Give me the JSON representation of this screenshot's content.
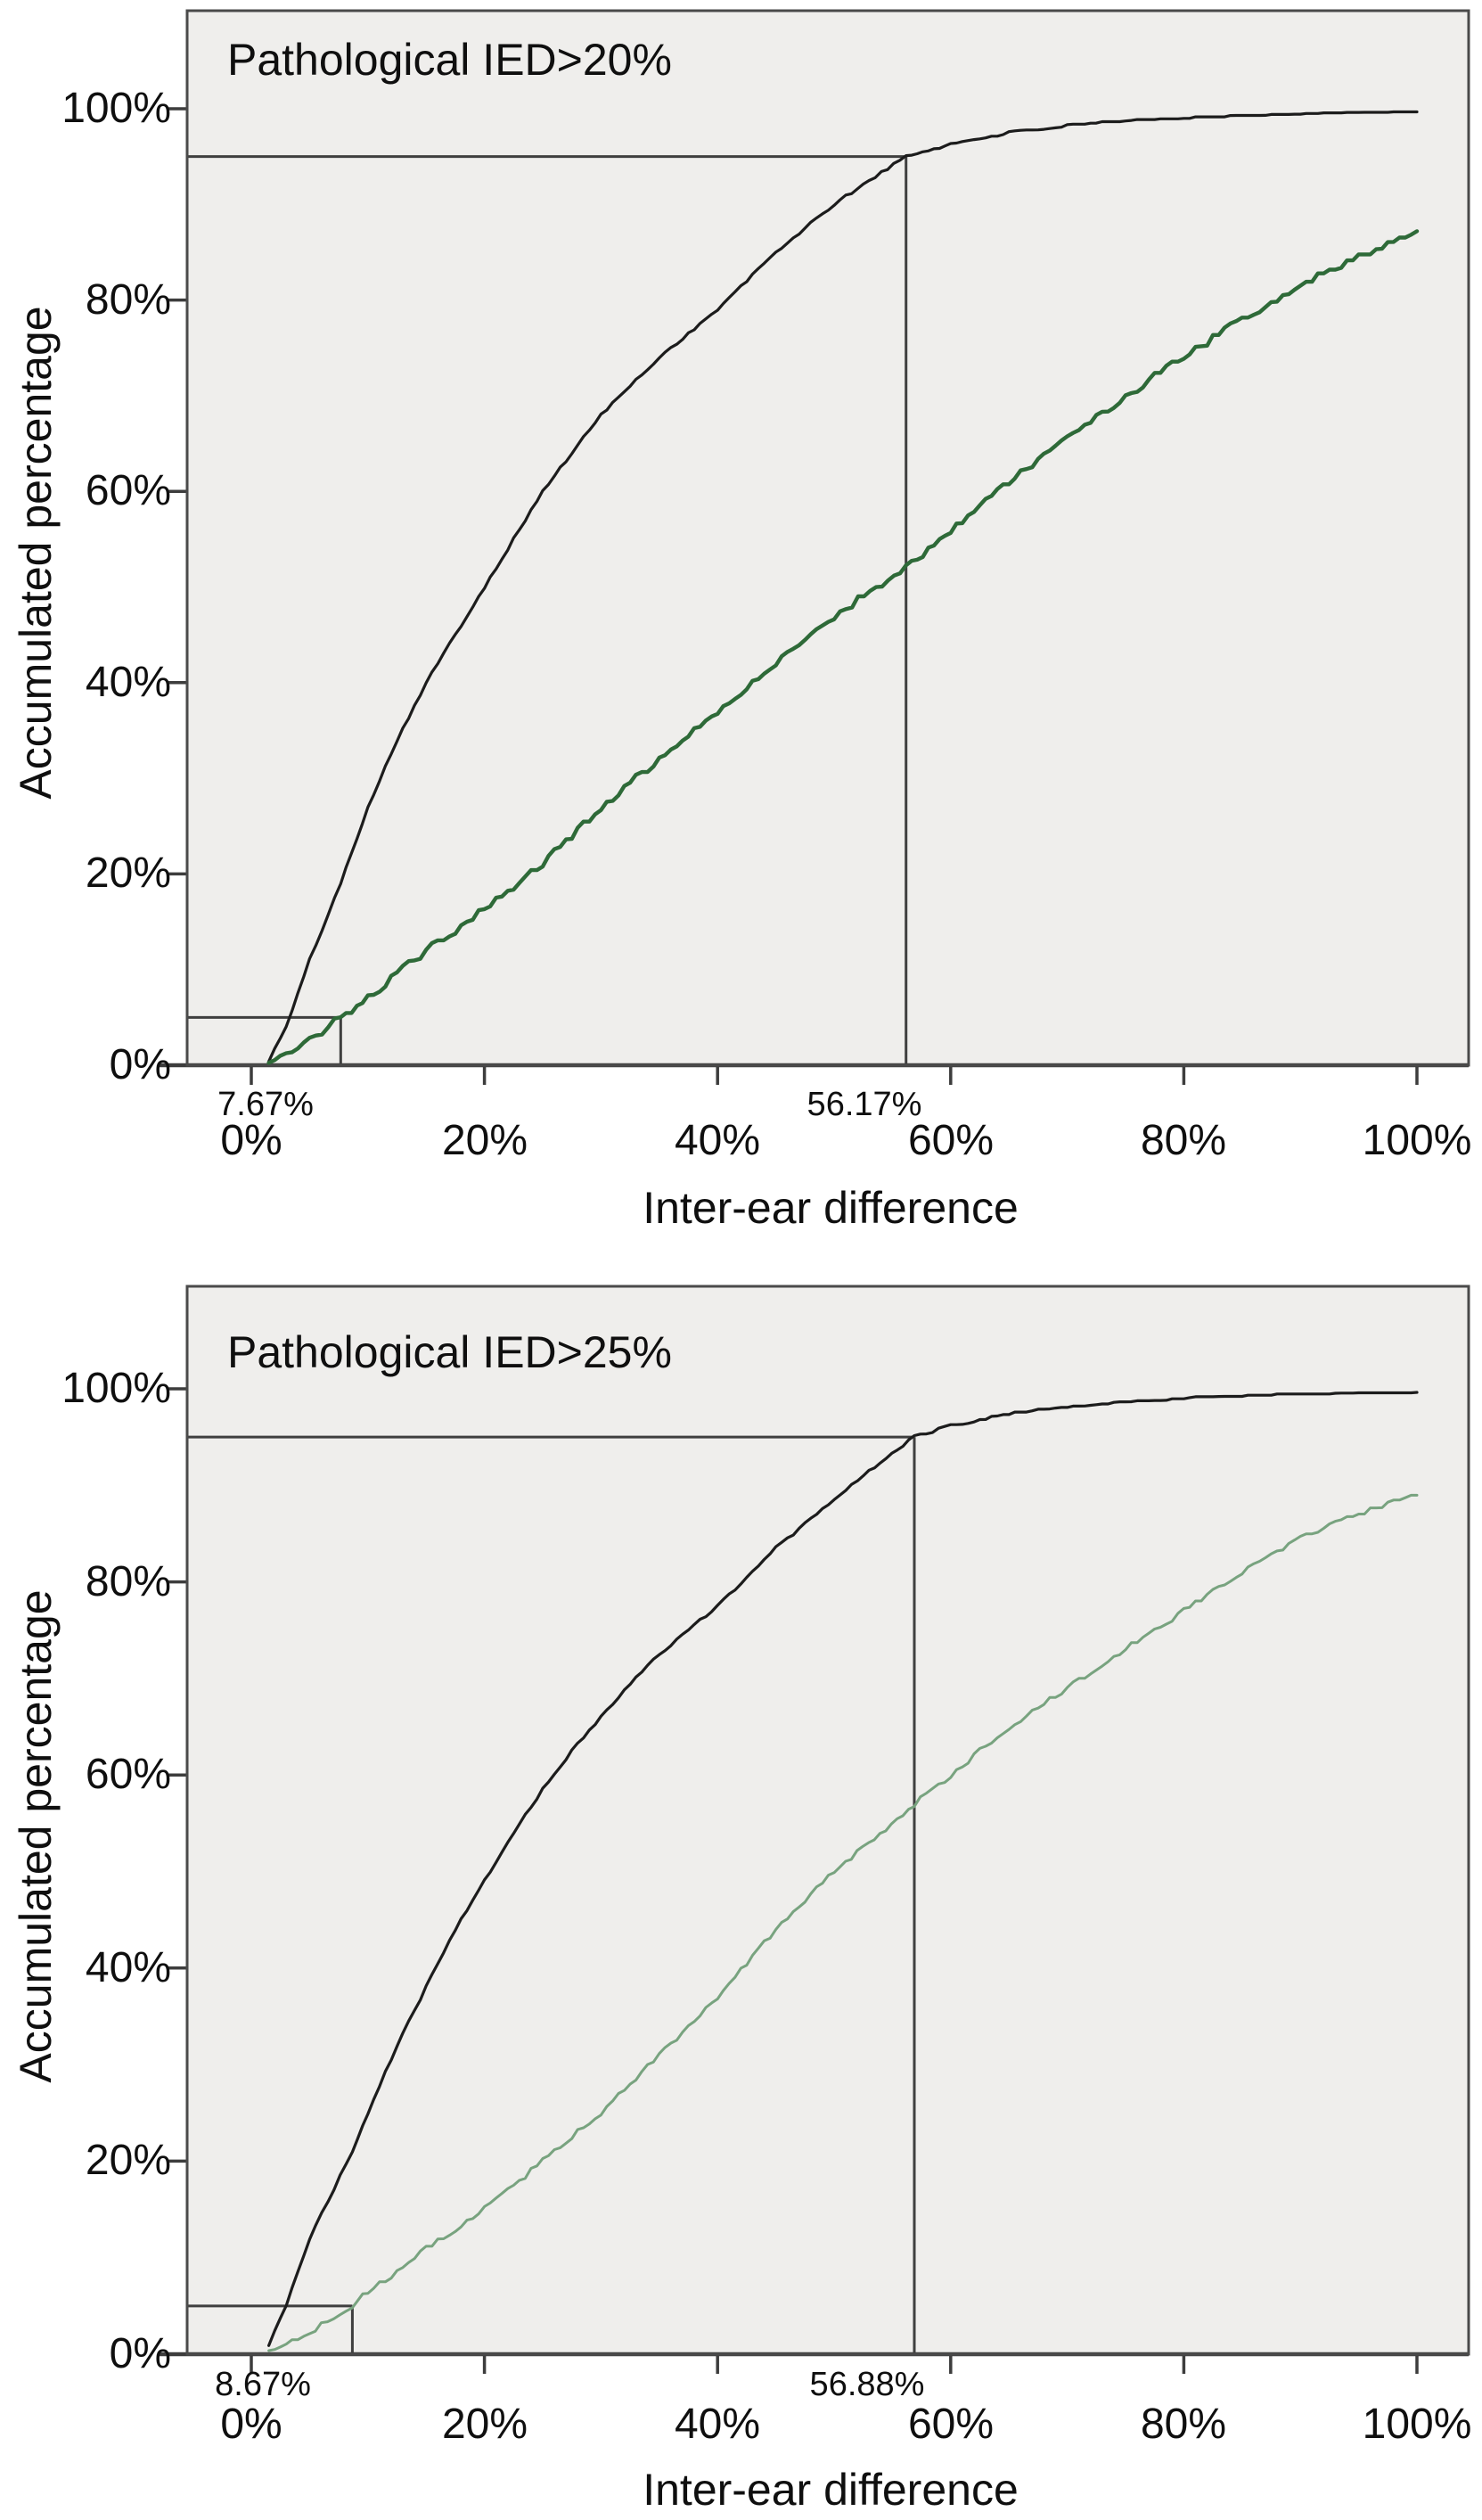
{
  "page": {
    "background": "#ffffff",
    "border_color": "#4a4a4a",
    "annotation_line_color": "#3f3f3f"
  },
  "chart_data": [
    {
      "type": "line",
      "title": "Pathological IED>20%",
      "xlabel": "Inter-ear difference",
      "ylabel": "Accumulated percentage",
      "xlim": [
        0,
        100
      ],
      "ylim": [
        0,
        100
      ],
      "grid": false,
      "legend": "none",
      "plot_bg": "#efeeec",
      "x_tick_values": [
        0,
        20,
        40,
        60,
        80,
        100
      ],
      "y_tick_values": [
        0,
        20,
        40,
        60,
        80,
        100
      ],
      "x_tick_labels": [
        "0%",
        "20%",
        "40%",
        "60%",
        "80%",
        "100%"
      ],
      "y_tick_labels": [
        "0%",
        "20%",
        "40%",
        "60%",
        "80%",
        "100%"
      ],
      "annotations": {
        "h_line_y": 95,
        "v_line_x": 56.17,
        "v_line_label": "56.17%",
        "box_line_y": 5,
        "box_line_x": 7.67,
        "box_label": "7.67%"
      },
      "series": [
        {
          "name": "black",
          "color": "#1c1c1c",
          "width": 3.2,
          "jitter": 0.15,
          "points": [
            [
              1.5,
              0.5
            ],
            [
              3,
              4
            ],
            [
              5,
              11
            ],
            [
              7.67,
              19
            ],
            [
              10,
              27
            ],
            [
              12.5,
              34
            ],
            [
              15,
              40
            ],
            [
              17.5,
              45
            ],
            [
              20,
              50
            ],
            [
              22.5,
              55
            ],
            [
              25,
              60
            ],
            [
              27.5,
              64
            ],
            [
              30,
              68
            ],
            [
              32.5,
              71
            ],
            [
              35,
              74
            ],
            [
              37.5,
              76.5
            ],
            [
              40,
              79
            ],
            [
              42.5,
              82
            ],
            [
              45,
              85
            ],
            [
              47.5,
              87.5
            ],
            [
              50,
              90
            ],
            [
              53,
              92.5
            ],
            [
              56.17,
              95
            ],
            [
              60,
              96.3
            ],
            [
              65,
              97.5
            ],
            [
              70,
              98.2
            ],
            [
              75,
              98.7
            ],
            [
              80,
              99
            ],
            [
              85,
              99.3
            ],
            [
              90,
              99.4
            ],
            [
              95,
              99.5
            ],
            [
              100,
              99.6
            ]
          ]
        },
        {
          "name": "green",
          "color": "#2e6a38",
          "width": 4.4,
          "jitter": 0.4,
          "points": [
            [
              1.5,
              0.3
            ],
            [
              3,
              1
            ],
            [
              5,
              2.5
            ],
            [
              7.67,
              5
            ],
            [
              10,
              7
            ],
            [
              12.5,
              9.5
            ],
            [
              15,
              12
            ],
            [
              17.5,
              14
            ],
            [
              20,
              16.5
            ],
            [
              25,
              21
            ],
            [
              30,
              27
            ],
            [
              35,
              32
            ],
            [
              40,
              37
            ],
            [
              45,
              42
            ],
            [
              50,
              47
            ],
            [
              56.17,
              52
            ],
            [
              60,
              56
            ],
            [
              65,
              61
            ],
            [
              70,
              65.5
            ],
            [
              75,
              70
            ],
            [
              80,
              74
            ],
            [
              85,
              78
            ],
            [
              90,
              81.5
            ],
            [
              95,
              84.5
            ],
            [
              100,
              87
            ]
          ]
        }
      ]
    },
    {
      "type": "line",
      "title": "Pathological IED>25%",
      "xlabel": "Inter-ear difference",
      "ylabel": "Accumulated percentage",
      "xlim": [
        0,
        100
      ],
      "ylim": [
        0,
        100
      ],
      "grid": false,
      "legend": "none",
      "plot_bg": "#efeeec",
      "x_tick_values": [
        0,
        20,
        40,
        60,
        80,
        100
      ],
      "y_tick_values": [
        0,
        20,
        40,
        60,
        80,
        100
      ],
      "x_tick_labels": [
        "0%",
        "20%",
        "40%",
        "60%",
        "80%",
        "100%"
      ],
      "y_tick_labels": [
        "0%",
        "20%",
        "40%",
        "60%",
        "80%",
        "100%"
      ],
      "annotations": {
        "h_line_y": 95,
        "v_line_x": 56.88,
        "v_line_label": "56.88%",
        "box_line_y": 5,
        "box_line_x": 8.67,
        "box_label": "8.67%"
      },
      "series": [
        {
          "name": "black",
          "color": "#1c1c1c",
          "width": 3.2,
          "jitter": 0.15,
          "points": [
            [
              1.5,
              1
            ],
            [
              3,
              5
            ],
            [
              5,
              12
            ],
            [
              8.67,
              21
            ],
            [
              10,
              25
            ],
            [
              12.5,
              32
            ],
            [
              15,
              38
            ],
            [
              17.5,
              44
            ],
            [
              20,
              49
            ],
            [
              22.5,
              54
            ],
            [
              25,
              58.5
            ],
            [
              27.5,
              62.5
            ],
            [
              30,
              66
            ],
            [
              32.5,
              69.5
            ],
            [
              35,
              72.5
            ],
            [
              37.5,
              75
            ],
            [
              40,
              77.5
            ],
            [
              42.5,
              80.5
            ],
            [
              45,
              83.5
            ],
            [
              47.5,
              86
            ],
            [
              50,
              88.5
            ],
            [
              53,
              91.5
            ],
            [
              56.88,
              95
            ],
            [
              60,
              96.2
            ],
            [
              65,
              97.4
            ],
            [
              70,
              98.1
            ],
            [
              75,
              98.6
            ],
            [
              80,
              99
            ],
            [
              85,
              99.2
            ],
            [
              90,
              99.4
            ],
            [
              95,
              99.5
            ],
            [
              100,
              99.5
            ]
          ]
        },
        {
          "name": "green",
          "color": "#78a37f",
          "width": 3,
          "jitter": 0.3,
          "points": [
            [
              1.5,
              0.5
            ],
            [
              4,
              1.5
            ],
            [
              6,
              3
            ],
            [
              8.67,
              5
            ],
            [
              10,
              6.5
            ],
            [
              12.5,
              8.5
            ],
            [
              15,
              11
            ],
            [
              17.5,
              13
            ],
            [
              20,
              15
            ],
            [
              25,
              20
            ],
            [
              30,
              25
            ],
            [
              35,
              31
            ],
            [
              40,
              37
            ],
            [
              45,
              44
            ],
            [
              50,
              50
            ],
            [
              56.88,
              57
            ],
            [
              60,
              60
            ],
            [
              65,
              65
            ],
            [
              70,
              69
            ],
            [
              75,
              73
            ],
            [
              80,
              77
            ],
            [
              85,
              81
            ],
            [
              90,
              84.5
            ],
            [
              95,
              87
            ],
            [
              100,
              89
            ]
          ]
        }
      ]
    }
  ]
}
